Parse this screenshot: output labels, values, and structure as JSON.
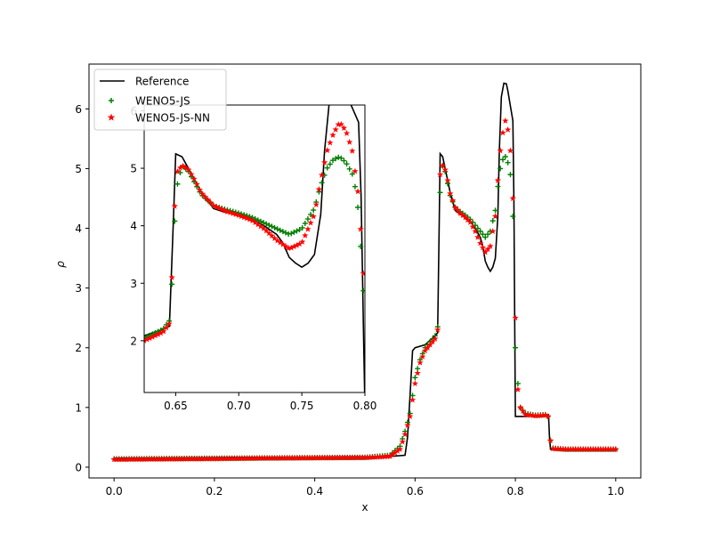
{
  "chart_data": [
    {
      "type": "line",
      "role": "main",
      "xlabel": "x",
      "ylabel": "ρ",
      "xlim": [
        -0.05,
        1.05
      ],
      "ylim": [
        -0.18,
        6.75
      ],
      "xticks": [
        0.0,
        0.2,
        0.4,
        0.6,
        0.8,
        1.0
      ],
      "xtick_labels": [
        "0.0",
        "0.2",
        "0.4",
        "0.6",
        "0.8",
        "1.0"
      ],
      "yticks": [
        0,
        1,
        2,
        3,
        4,
        5,
        6
      ],
      "ytick_labels": [
        "0",
        "1",
        "2",
        "3",
        "4",
        "5",
        "6"
      ],
      "legend": {
        "position": "top-left",
        "entries": [
          {
            "label": "Reference",
            "marker": "line",
            "color": "#000000"
          },
          {
            "label": "WENO5-JS",
            "marker": "plus",
            "color": "#008000"
          },
          {
            "label": "WENO5-JS-NN",
            "marker": "star",
            "color": "#ff0000"
          }
        ]
      },
      "series": [
        {
          "name": "Reference",
          "style": "line",
          "color": "#000000",
          "points": [
            [
              0.0,
              0.15
            ],
            [
              0.1,
              0.155
            ],
            [
              0.2,
              0.16
            ],
            [
              0.3,
              0.165
            ],
            [
              0.4,
              0.17
            ],
            [
              0.5,
              0.175
            ],
            [
              0.55,
              0.18
            ],
            [
              0.58,
              0.2
            ],
            [
              0.585,
              0.5
            ],
            [
              0.59,
              1.2
            ],
            [
              0.595,
              1.95
            ],
            [
              0.6,
              2.0
            ],
            [
              0.62,
              2.05
            ],
            [
              0.64,
              2.2
            ],
            [
              0.645,
              2.25
            ],
            [
              0.648,
              4.0
            ],
            [
              0.65,
              5.25
            ],
            [
              0.655,
              5.2
            ],
            [
              0.66,
              5.0
            ],
            [
              0.665,
              4.8
            ],
            [
              0.67,
              4.6
            ],
            [
              0.675,
              4.45
            ],
            [
              0.68,
              4.3
            ],
            [
              0.69,
              4.23
            ],
            [
              0.7,
              4.2
            ],
            [
              0.71,
              4.12
            ],
            [
              0.72,
              4.0
            ],
            [
              0.73,
              3.85
            ],
            [
              0.735,
              3.7
            ],
            [
              0.74,
              3.45
            ],
            [
              0.745,
              3.35
            ],
            [
              0.75,
              3.28
            ],
            [
              0.755,
              3.35
            ],
            [
              0.76,
              3.5
            ],
            [
              0.765,
              4.2
            ],
            [
              0.768,
              5.3
            ],
            [
              0.772,
              6.2
            ],
            [
              0.777,
              6.43
            ],
            [
              0.782,
              6.42
            ],
            [
              0.785,
              6.3
            ],
            [
              0.79,
              6.05
            ],
            [
              0.795,
              5.8
            ],
            [
              0.797,
              4.5
            ],
            [
              0.799,
              2.0
            ],
            [
              0.8,
              0.85
            ],
            [
              0.82,
              0.85
            ],
            [
              0.84,
              0.86
            ],
            [
              0.86,
              0.88
            ],
            [
              0.866,
              0.88
            ],
            [
              0.868,
              0.5
            ],
            [
              0.87,
              0.3
            ],
            [
              0.9,
              0.3
            ],
            [
              0.95,
              0.3
            ],
            [
              1.0,
              0.3
            ]
          ]
        },
        {
          "name": "WENO5-JS",
          "style": "plus",
          "color": "#008000",
          "points": [
            [
              0.0,
              0.14
            ],
            [
              0.1,
              0.145
            ],
            [
              0.2,
              0.15
            ],
            [
              0.3,
              0.155
            ],
            [
              0.4,
              0.16
            ],
            [
              0.5,
              0.165
            ],
            [
              0.55,
              0.2
            ],
            [
              0.57,
              0.35
            ],
            [
              0.58,
              0.6
            ],
            [
              0.59,
              0.9
            ],
            [
              0.6,
              1.5
            ],
            [
              0.61,
              1.8
            ],
            [
              0.62,
              2.0
            ],
            [
              0.63,
              2.1
            ],
            [
              0.64,
              2.2
            ],
            [
              0.645,
              2.35
            ],
            [
              0.648,
              3.3
            ],
            [
              0.65,
              4.6
            ],
            [
              0.655,
              5.05
            ],
            [
              0.66,
              4.95
            ],
            [
              0.665,
              4.75
            ],
            [
              0.67,
              4.55
            ],
            [
              0.68,
              4.35
            ],
            [
              0.69,
              4.28
            ],
            [
              0.7,
              4.22
            ],
            [
              0.71,
              4.15
            ],
            [
              0.72,
              4.05
            ],
            [
              0.73,
              3.95
            ],
            [
              0.74,
              3.85
            ],
            [
              0.75,
              3.95
            ],
            [
              0.76,
              4.3
            ],
            [
              0.765,
              4.7
            ],
            [
              0.77,
              5.0
            ],
            [
              0.775,
              5.15
            ],
            [
              0.78,
              5.2
            ],
            [
              0.785,
              5.1
            ],
            [
              0.79,
              4.9
            ],
            [
              0.793,
              4.6
            ],
            [
              0.795,
              4.2
            ],
            [
              0.797,
              3.5
            ],
            [
              0.799,
              2.8
            ],
            [
              0.8,
              2.0
            ],
            [
              0.805,
              1.4
            ],
            [
              0.81,
              1.0
            ],
            [
              0.82,
              0.9
            ],
            [
              0.84,
              0.87
            ],
            [
              0.86,
              0.88
            ],
            [
              0.865,
              0.85
            ],
            [
              0.868,
              0.5
            ],
            [
              0.875,
              0.32
            ],
            [
              0.9,
              0.3
            ],
            [
              0.95,
              0.3
            ],
            [
              1.0,
              0.3
            ]
          ]
        },
        {
          "name": "WENO5-JS-NN",
          "style": "star",
          "color": "#ff0000",
          "points": [
            [
              0.0,
              0.13
            ],
            [
              0.1,
              0.135
            ],
            [
              0.2,
              0.14
            ],
            [
              0.3,
              0.15
            ],
            [
              0.4,
              0.155
            ],
            [
              0.5,
              0.16
            ],
            [
              0.55,
              0.18
            ],
            [
              0.57,
              0.3
            ],
            [
              0.58,
              0.55
            ],
            [
              0.59,
              0.85
            ],
            [
              0.6,
              1.4
            ],
            [
              0.61,
              1.75
            ],
            [
              0.62,
              1.95
            ],
            [
              0.63,
              2.05
            ],
            [
              0.64,
              2.15
            ],
            [
              0.645,
              2.3
            ],
            [
              0.648,
              3.5
            ],
            [
              0.65,
              4.9
            ],
            [
              0.655,
              5.05
            ],
            [
              0.66,
              4.98
            ],
            [
              0.665,
              4.8
            ],
            [
              0.67,
              4.58
            ],
            [
              0.68,
              4.35
            ],
            [
              0.69,
              4.25
            ],
            [
              0.7,
              4.18
            ],
            [
              0.71,
              4.1
            ],
            [
              0.72,
              3.95
            ],
            [
              0.73,
              3.75
            ],
            [
              0.74,
              3.6
            ],
            [
              0.75,
              3.7
            ],
            [
              0.76,
              4.2
            ],
            [
              0.765,
              4.8
            ],
            [
              0.77,
              5.3
            ],
            [
              0.775,
              5.6
            ],
            [
              0.78,
              5.8
            ],
            [
              0.785,
              5.65
            ],
            [
              0.79,
              5.3
            ],
            [
              0.795,
              4.5
            ],
            [
              0.797,
              3.8
            ],
            [
              0.799,
              3.1
            ],
            [
              0.8,
              2.5
            ],
            [
              0.805,
              1.3
            ],
            [
              0.81,
              1.0
            ],
            [
              0.82,
              0.88
            ],
            [
              0.84,
              0.86
            ],
            [
              0.86,
              0.87
            ],
            [
              0.865,
              0.85
            ],
            [
              0.868,
              0.5
            ],
            [
              0.875,
              0.31
            ],
            [
              0.9,
              0.3
            ],
            [
              0.95,
              0.3
            ],
            [
              1.0,
              0.3
            ]
          ]
        }
      ]
    },
    {
      "type": "line",
      "role": "inset",
      "xlim": [
        0.625,
        0.8
      ],
      "ylim": [
        1.1,
        6.1
      ],
      "xticks": [
        0.65,
        0.7,
        0.75,
        0.8
      ],
      "xtick_labels": [
        "0.65",
        "0.70",
        "0.75",
        "0.80"
      ],
      "yticks": [
        2,
        3,
        4,
        5,
        6
      ],
      "ytick_labels": [
        "2",
        "3",
        "4",
        "5",
        "6"
      ]
    }
  ]
}
